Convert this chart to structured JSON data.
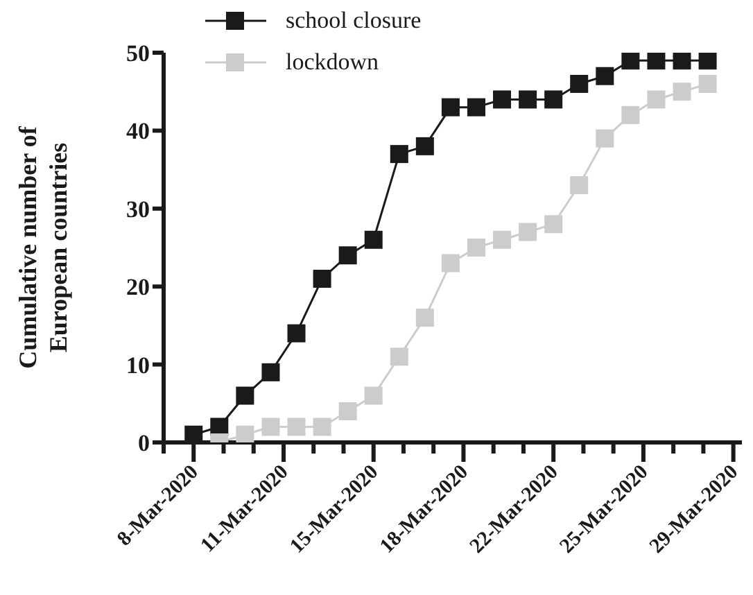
{
  "chart_data": {
    "type": "line",
    "ylabel": "Cumulative number of European countries",
    "x": [
      "2020-03-08",
      "2020-03-09",
      "2020-03-10",
      "2020-03-11",
      "2020-03-12",
      "2020-03-13",
      "2020-03-14",
      "2020-03-15",
      "2020-03-16",
      "2020-03-17",
      "2020-03-18",
      "2020-03-19",
      "2020-03-20",
      "2020-03-21",
      "2020-03-22",
      "2020-03-23",
      "2020-03-24",
      "2020-03-25",
      "2020-03-26",
      "2020-03-27",
      "2020-03-28"
    ],
    "series": [
      {
        "name": "school closure",
        "color": "#1a1a1a",
        "values": [
          1,
          2,
          6,
          9,
          14,
          21,
          24,
          26,
          37,
          38,
          43,
          43,
          44,
          44,
          44,
          46,
          47,
          49,
          49,
          49,
          49
        ]
      },
      {
        "name": "lockdown",
        "color": "#cccccc",
        "values": [
          null,
          0,
          1,
          2,
          2,
          2,
          4,
          6,
          11,
          16,
          23,
          25,
          26,
          27,
          28,
          33,
          39,
          42,
          44,
          45,
          46
        ]
      }
    ],
    "xlim": [
      "2020-03-06T20:00",
      "2020-03-29T08:00"
    ],
    "xticks": [
      {
        "value": "2020-03-06T20:00",
        "label": null
      },
      {
        "value": "2020-03-08",
        "label": "8-Mar-2020"
      },
      {
        "value": "2020-03-09T04:00",
        "label": null
      },
      {
        "value": "2020-03-10T08:00",
        "label": null
      },
      {
        "value": "2020-03-11T12:00",
        "label": "11-Mar-2020"
      },
      {
        "value": "2020-03-12T16:00",
        "label": null
      },
      {
        "value": "2020-03-13T20:00",
        "label": null
      },
      {
        "value": "2020-03-15",
        "label": "15-Mar-2020"
      },
      {
        "value": "2020-03-16T04:00",
        "label": null
      },
      {
        "value": "2020-03-17T08:00",
        "label": null
      },
      {
        "value": "2020-03-18T12:00",
        "label": "18-Mar-2020"
      },
      {
        "value": "2020-03-19T16:00",
        "label": null
      },
      {
        "value": "2020-03-20T20:00",
        "label": null
      },
      {
        "value": "2020-03-22",
        "label": "22-Mar-2020"
      },
      {
        "value": "2020-03-23T04:00",
        "label": null
      },
      {
        "value": "2020-03-24T08:00",
        "label": null
      },
      {
        "value": "2020-03-25T12:00",
        "label": "25-Mar-2020"
      },
      {
        "value": "2020-03-26T16:00",
        "label": null
      },
      {
        "value": "2020-03-27T20:00",
        "label": null
      },
      {
        "value": "2020-03-29",
        "label": "29-Mar-2020"
      }
    ],
    "ylim": [
      0,
      50
    ],
    "yticks": [
      0,
      10,
      20,
      30,
      40,
      50
    ],
    "grid": false,
    "legend": "top left",
    "marker": "square",
    "line_style": "solid"
  }
}
